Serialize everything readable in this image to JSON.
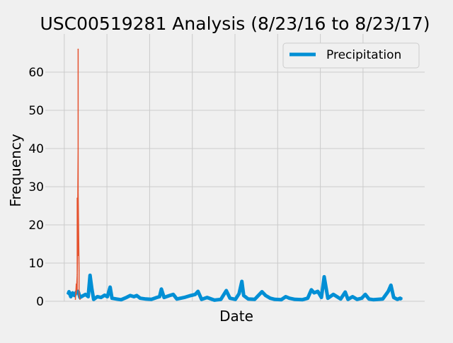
{
  "chart_data": {
    "type": "line",
    "title": "USC00519281 Analysis (8/23/16 to 8/23/17)",
    "xlabel": "Date",
    "ylabel": "Frequency",
    "x_range": [
      "2016-08-23",
      "2017-08-23"
    ],
    "ylim": [
      0,
      70
    ],
    "yticks": [
      0,
      10,
      20,
      30,
      40,
      50,
      60
    ],
    "yticklabels": [
      "0",
      "10",
      "20",
      "30",
      "40",
      "50",
      "60"
    ],
    "grid": true,
    "legend": {
      "position": "top-right",
      "entries": [
        "Precipitation"
      ]
    },
    "series": [
      {
        "name": "Precipitation",
        "color": "#008fd5",
        "points": [
          [
            "2016-08-23",
            1.8
          ],
          [
            "2016-08-24",
            2.5
          ],
          [
            "2016-08-26",
            1.2
          ],
          [
            "2016-08-28",
            2.2
          ],
          [
            "2016-08-30",
            1.5
          ],
          [
            "2016-09-01",
            2.4
          ],
          [
            "2016-09-03",
            2.6
          ],
          [
            "2016-09-05",
            1.0
          ],
          [
            "2016-09-08",
            1.4
          ],
          [
            "2016-09-11",
            1.8
          ],
          [
            "2016-09-14",
            1.2
          ],
          [
            "2016-09-16",
            6.8
          ],
          [
            "2016-09-18",
            3.2
          ],
          [
            "2016-09-20",
            0.5
          ],
          [
            "2016-09-24",
            1.2
          ],
          [
            "2016-09-28",
            1.0
          ],
          [
            "2016-10-02",
            1.6
          ],
          [
            "2016-10-05",
            1.2
          ],
          [
            "2016-10-08",
            3.7
          ],
          [
            "2016-10-10",
            0.8
          ],
          [
            "2016-10-15",
            0.6
          ],
          [
            "2016-10-20",
            0.4
          ],
          [
            "2016-10-25",
            0.9
          ],
          [
            "2016-10-30",
            1.5
          ],
          [
            "2016-11-03",
            1.2
          ],
          [
            "2016-11-06",
            1.5
          ],
          [
            "2016-11-10",
            0.8
          ],
          [
            "2016-11-16",
            0.6
          ],
          [
            "2016-11-22",
            0.5
          ],
          [
            "2016-11-28",
            1.0
          ],
          [
            "2016-12-01",
            1.2
          ],
          [
            "2016-12-03",
            3.2
          ],
          [
            "2016-12-06",
            1.0
          ],
          [
            "2016-12-12",
            1.5
          ],
          [
            "2016-12-16",
            1.8
          ],
          [
            "2016-12-20",
            0.6
          ],
          [
            "2016-12-28",
            1.0
          ],
          [
            "2017-01-04",
            1.5
          ],
          [
            "2017-01-09",
            1.8
          ],
          [
            "2017-01-12",
            2.6
          ],
          [
            "2017-01-16",
            0.5
          ],
          [
            "2017-01-22",
            1.0
          ],
          [
            "2017-01-30",
            0.3
          ],
          [
            "2017-02-06",
            0.5
          ],
          [
            "2017-02-12",
            2.8
          ],
          [
            "2017-02-16",
            0.8
          ],
          [
            "2017-02-22",
            0.5
          ],
          [
            "2017-02-26",
            2.0
          ],
          [
            "2017-03-01",
            5.2
          ],
          [
            "2017-03-03",
            1.5
          ],
          [
            "2017-03-08",
            0.6
          ],
          [
            "2017-03-15",
            0.5
          ],
          [
            "2017-03-23",
            2.5
          ],
          [
            "2017-03-27",
            1.5
          ],
          [
            "2017-04-01",
            0.8
          ],
          [
            "2017-04-06",
            0.5
          ],
          [
            "2017-04-13",
            0.4
          ],
          [
            "2017-04-18",
            1.2
          ],
          [
            "2017-04-22",
            0.8
          ],
          [
            "2017-04-28",
            0.5
          ],
          [
            "2017-05-06",
            0.4
          ],
          [
            "2017-05-12",
            0.8
          ],
          [
            "2017-05-16",
            3.0
          ],
          [
            "2017-05-19",
            2.2
          ],
          [
            "2017-05-23",
            2.6
          ],
          [
            "2017-05-27",
            1.0
          ],
          [
            "2017-05-30",
            6.4
          ],
          [
            "2017-06-03",
            0.8
          ],
          [
            "2017-06-09",
            1.8
          ],
          [
            "2017-06-13",
            1.2
          ],
          [
            "2017-06-17",
            0.6
          ],
          [
            "2017-06-22",
            2.4
          ],
          [
            "2017-06-25",
            0.5
          ],
          [
            "2017-06-30",
            1.2
          ],
          [
            "2017-07-05",
            0.5
          ],
          [
            "2017-07-10",
            0.8
          ],
          [
            "2017-07-14",
            1.8
          ],
          [
            "2017-07-18",
            0.6
          ],
          [
            "2017-07-23",
            0.4
          ],
          [
            "2017-08-02",
            0.6
          ],
          [
            "2017-08-08",
            2.6
          ],
          [
            "2017-08-11",
            4.2
          ],
          [
            "2017-08-14",
            1.0
          ],
          [
            "2017-08-18",
            0.5
          ],
          [
            "2017-08-21",
            0.8
          ],
          [
            "2017-08-23",
            0.5
          ]
        ]
      },
      {
        "name": "",
        "color": "#e5532f",
        "points": [
          [
            "2016-08-31",
            0.5
          ],
          [
            "2016-09-01",
            4.5
          ],
          [
            "2016-09-01",
            2.0
          ],
          [
            "2016-09-02",
            7.0
          ],
          [
            "2016-09-02",
            3.0
          ],
          [
            "2016-09-02",
            27.0
          ],
          [
            "2016-09-02",
            5.0
          ],
          [
            "2016-09-03",
            40.0
          ],
          [
            "2016-09-03",
            66.0
          ],
          [
            "2016-09-03",
            12.0
          ],
          [
            "2016-09-03",
            29.0
          ],
          [
            "2016-09-04",
            8.0
          ],
          [
            "2016-09-04",
            1.5
          ],
          [
            "2016-09-05",
            0.5
          ]
        ]
      }
    ]
  }
}
